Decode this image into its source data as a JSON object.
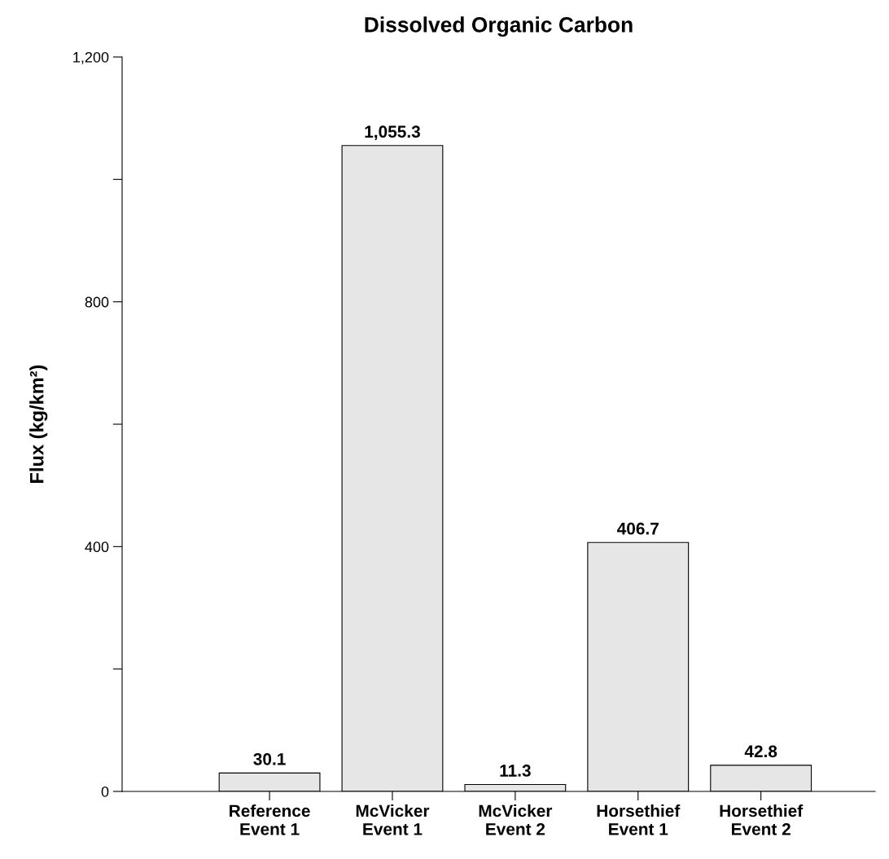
{
  "chart_data": {
    "type": "bar",
    "title": "Dissolved Organic Carbon",
    "ylabel": "Flux (kg/km²)",
    "categories": [
      "Reference\nEvent 1",
      "McVicker\nEvent 1",
      "McVicker\nEvent 2",
      "Horsethief\nEvent 1",
      "Horsethief\nEvent 2"
    ],
    "values": [
      30.1,
      1055.3,
      11.3,
      406.7,
      42.8
    ],
    "value_labels": [
      "30.1",
      "1,055.3",
      "11.3",
      "406.7",
      "42.8"
    ],
    "color": "#e6e6e6",
    "ylim": [
      0,
      1200
    ],
    "yticks": [
      0,
      {
        "value": 200,
        "label": null
      },
      400,
      {
        "value": 600,
        "label": null
      },
      800,
      {
        "value": 1000,
        "label": null
      },
      {
        "value": 1200,
        "label": "1,200"
      }
    ],
    "grid": false,
    "legend": false
  }
}
